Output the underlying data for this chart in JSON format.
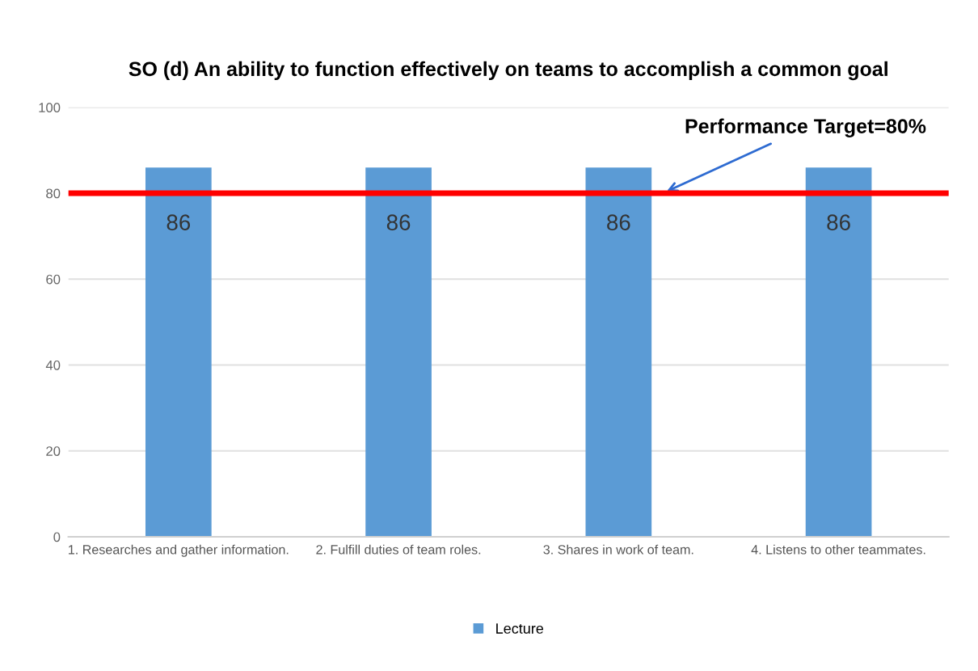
{
  "chart_data": {
    "type": "bar",
    "title": "SO (d) An ability to function effectively on teams to accomplish a common goal",
    "categories": [
      "1. Researches and gather information.",
      "2. Fulfill duties of team roles.",
      "3. Shares in work of team.",
      "4. Listens to other teammates."
    ],
    "series": [
      {
        "name": "Lecture",
        "color": "#5b9bd5",
        "values": [
          86,
          86,
          86,
          86
        ]
      }
    ],
    "ylim": [
      0,
      100
    ],
    "yticks": [
      0,
      20,
      40,
      60,
      80,
      100
    ],
    "grid": "y",
    "legend": "bottom",
    "data_labels": true,
    "ref_lines": [
      {
        "axis": "y",
        "value": 80,
        "label": "Performance Target=80%",
        "color": "#ff0000"
      }
    ]
  }
}
